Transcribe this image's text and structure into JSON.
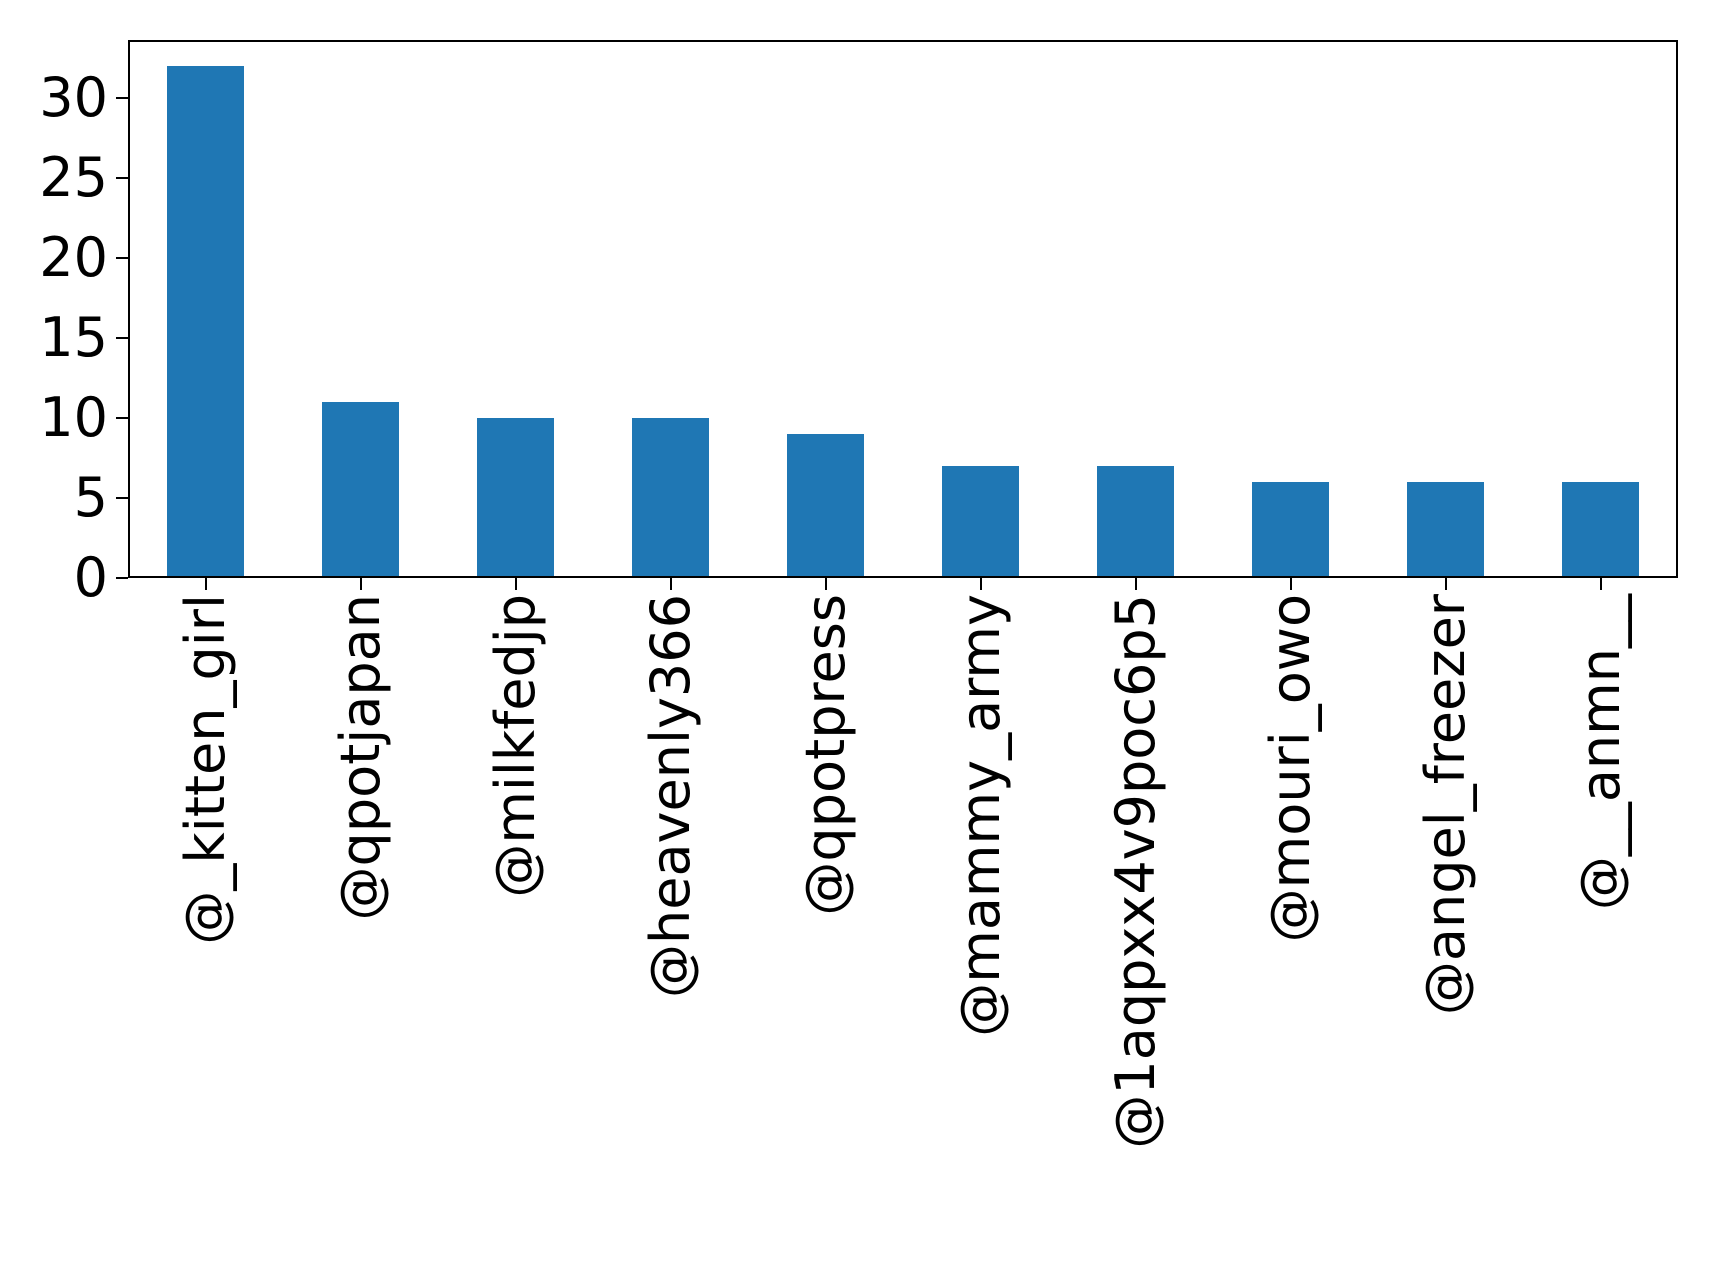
{
  "chart_data": {
    "type": "bar",
    "title": "",
    "xlabel": "",
    "ylabel": "",
    "categories": [
      "@_kitten_girl",
      "@qpotjapan",
      "@milkfedjp",
      "@heavenly366",
      "@qpotpress",
      "@mammy_army",
      "@1aqpxx4v9poc6p5",
      "@mouri_owo",
      "@angel_freezer",
      "@__anmn__"
    ],
    "values": [
      32,
      11,
      10,
      10,
      9,
      7,
      7,
      6,
      6,
      6
    ],
    "yticks": [
      0,
      5,
      10,
      15,
      20,
      25,
      30
    ],
    "ylim": [
      0,
      33.6
    ],
    "bar_color": "#1f77b4",
    "axis_color": "#000000",
    "background_color": "#ffffff",
    "grid": false,
    "legend": false,
    "bar_width_fraction": 0.5,
    "x_tick_label_rotation": 90
  }
}
